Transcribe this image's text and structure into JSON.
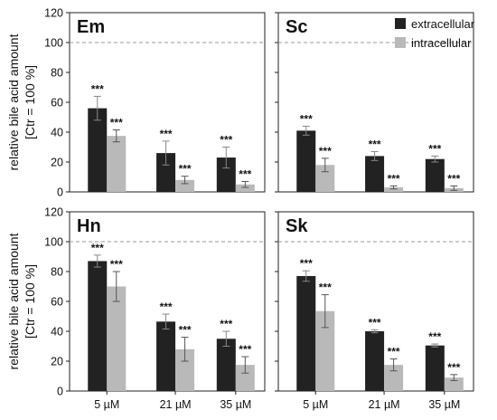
{
  "chart_data": {
    "type": "bar",
    "ylabel": [
      "relative bile acid amount",
      "[Ctr = 100 %]"
    ],
    "categories": [
      "5 µM",
      "21 µM",
      "35 µM"
    ],
    "ylim": [
      0,
      120
    ],
    "yticks": [
      0,
      20,
      40,
      60,
      80,
      100,
      120
    ],
    "reference_line": 100,
    "significance_label": "***",
    "legend": {
      "position": "top-right",
      "entries": [
        {
          "name": "extracellular",
          "color": "#222222"
        },
        {
          "name": "intracellular",
          "color": "#b9b9b9"
        }
      ]
    },
    "panels": [
      {
        "title": "Em",
        "series": [
          {
            "name": "extracellular",
            "color": "#222222",
            "values": [
              56,
              26,
              23
            ],
            "errors": [
              8,
              8,
              7
            ]
          },
          {
            "name": "intracellular",
            "color": "#b9b9b9",
            "values": [
              37.5,
              8,
              5
            ],
            "errors": [
              4,
              2.5,
              2
            ]
          }
        ]
      },
      {
        "title": "Sc",
        "series": [
          {
            "name": "extracellular",
            "color": "#222222",
            "values": [
              41,
              24,
              22
            ],
            "errors": [
              3,
              3,
              2
            ]
          },
          {
            "name": "intracellular",
            "color": "#b9b9b9",
            "values": [
              18,
              3,
              2.5
            ],
            "errors": [
              4.5,
              1,
              1.5
            ]
          }
        ]
      },
      {
        "title": "Hn",
        "series": [
          {
            "name": "extracellular",
            "color": "#222222",
            "values": [
              87,
              46.5,
              35
            ],
            "errors": [
              4,
              5,
              5
            ]
          },
          {
            "name": "intracellular",
            "color": "#b9b9b9",
            "values": [
              70,
              28,
              17.5
            ],
            "errors": [
              10,
              8,
              5.5
            ]
          }
        ]
      },
      {
        "title": "Sk",
        "series": [
          {
            "name": "extracellular",
            "color": "#222222",
            "values": [
              77,
              40,
              30.5
            ],
            "errors": [
              3.5,
              1,
              1
            ]
          },
          {
            "name": "intracellular",
            "color": "#b9b9b9",
            "values": [
              53.5,
              17.5,
              9
            ],
            "errors": [
              11,
              4,
              2
            ]
          }
        ]
      }
    ]
  }
}
